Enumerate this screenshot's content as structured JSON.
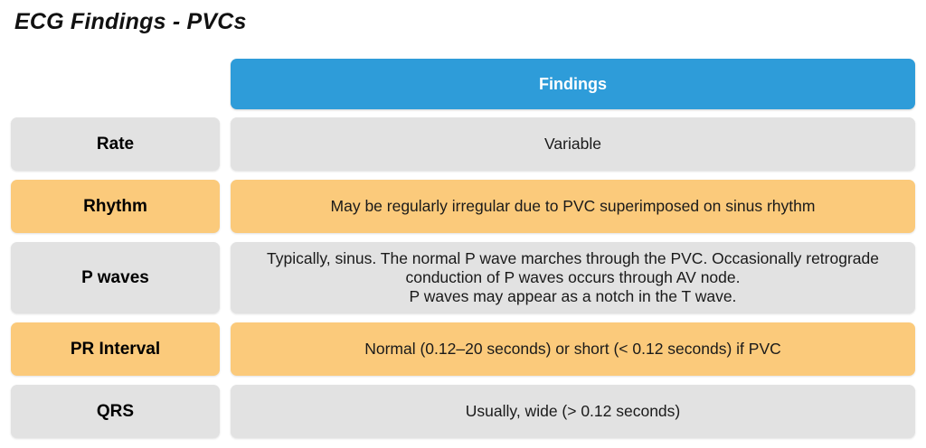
{
  "title": "ECG Findings - PVCs",
  "table": {
    "header": "Findings",
    "rows": [
      {
        "label": "Rate",
        "finding": "Variable",
        "variant": "gray"
      },
      {
        "label": "Rhythm",
        "finding": "May be regularly irregular due to PVC superimposed on sinus rhythm",
        "variant": "orange"
      },
      {
        "label": "P waves",
        "finding": "Typically, sinus. The normal P wave marches through the PVC. Occasionally retrograde conduction of P waves occurs through AV node.\nP waves may appear as a notch in the T wave.",
        "variant": "gray"
      },
      {
        "label": "PR Interval",
        "finding": "Normal (0.12–20 seconds) or short (< 0.12 seconds) if PVC",
        "variant": "orange"
      },
      {
        "label": "QRS",
        "finding": "Usually, wide (> 0.12 seconds)",
        "variant": "gray"
      }
    ]
  },
  "colors": {
    "header_bg": "#2E9CD9",
    "header_text": "#FFFFFF",
    "orange_bg": "#FBCA7B",
    "gray_bg": "#E2E2E2",
    "text": "#1A1A1A"
  }
}
